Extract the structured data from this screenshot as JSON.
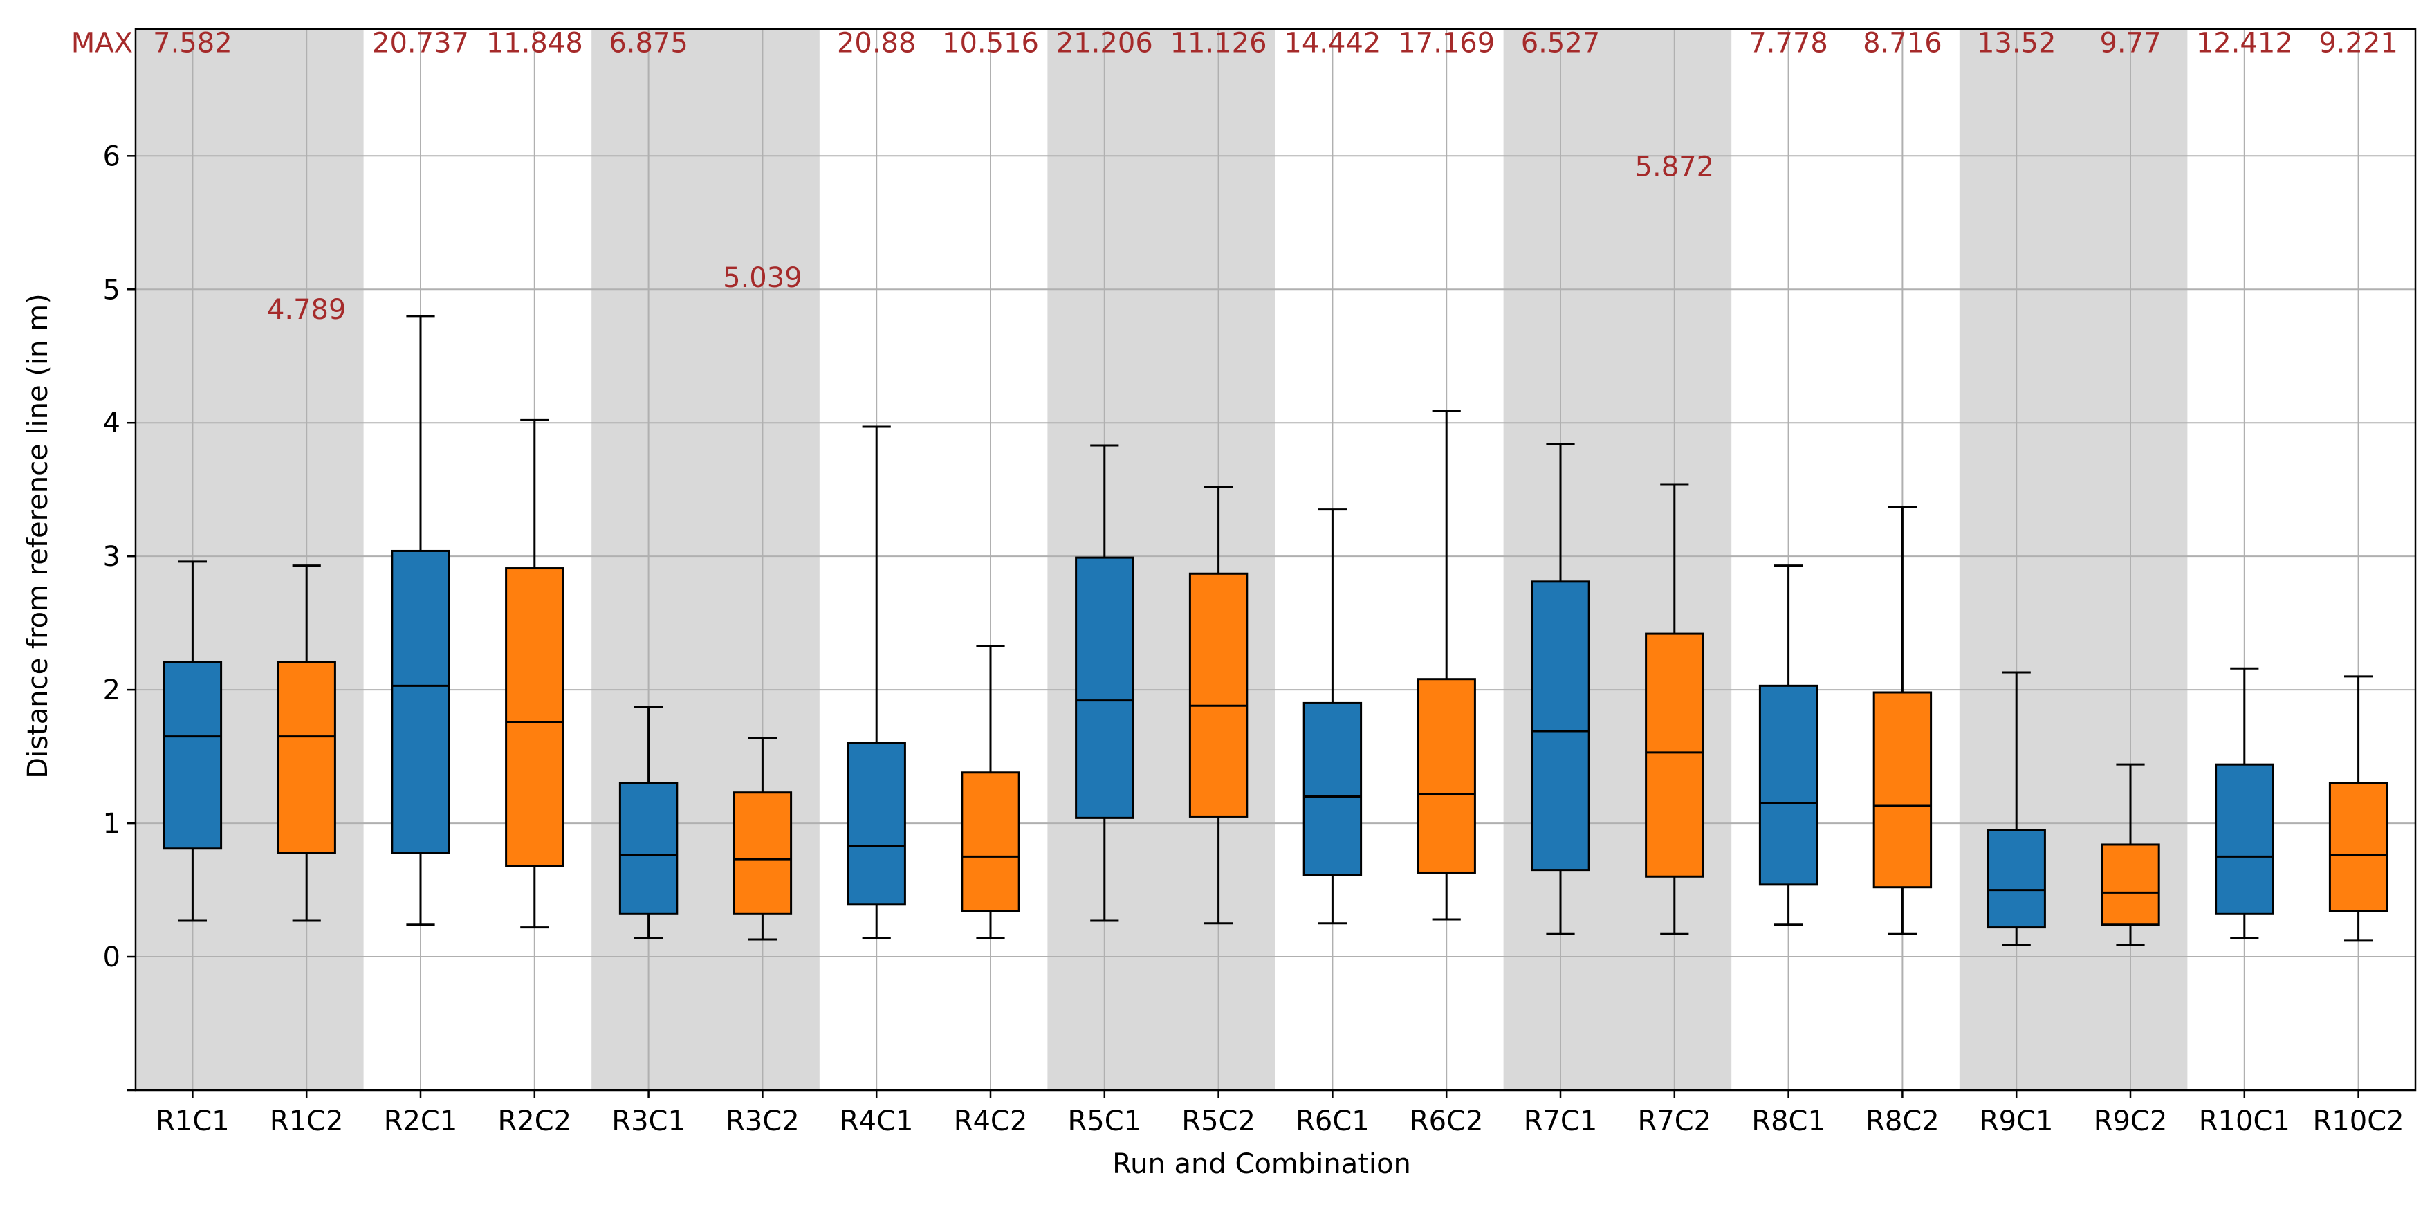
{
  "chart_data": {
    "type": "boxplot",
    "title": "",
    "xlabel": "Run and Combination",
    "ylabel": "Distance from reference line (in m)",
    "ylim": [
      -1.0,
      6.95
    ],
    "yticks": [
      0,
      1,
      2,
      3,
      4,
      5,
      6
    ],
    "grid": true,
    "max_prefix": "MAX",
    "colors": {
      "C1": "#1f77b4",
      "C2": "#ff7f0e",
      "shade": "#d9d9d9",
      "grid": "#b0b0b0",
      "annotation": "#a52a2a",
      "edge": "#000000"
    },
    "shaded_runs": [
      "R1",
      "R3",
      "R5",
      "R7",
      "R9"
    ],
    "categories": [
      "R1C1",
      "R1C2",
      "R2C1",
      "R2C2",
      "R3C1",
      "R3C2",
      "R4C1",
      "R4C2",
      "R5C1",
      "R5C2",
      "R6C1",
      "R6C2",
      "R7C1",
      "R7C2",
      "R8C1",
      "R8C2",
      "R9C1",
      "R9C2",
      "R10C1",
      "R10C2"
    ],
    "boxes": [
      {
        "label": "R1C1",
        "combo": "C1",
        "whislo": 0.27,
        "q1": 0.81,
        "med": 1.65,
        "q3": 2.21,
        "whishi": 2.96,
        "max": "7.582",
        "max_y": 6.85
      },
      {
        "label": "R1C2",
        "combo": "C2",
        "whislo": 0.27,
        "q1": 0.78,
        "med": 1.65,
        "q3": 2.21,
        "whishi": 2.93,
        "max": "4.789",
        "max_y": 4.85
      },
      {
        "label": "R2C1",
        "combo": "C1",
        "whislo": 0.24,
        "q1": 0.78,
        "med": 2.03,
        "q3": 3.04,
        "whishi": 4.8,
        "max": "20.737",
        "max_y": 6.85
      },
      {
        "label": "R2C2",
        "combo": "C2",
        "whislo": 0.22,
        "q1": 0.68,
        "med": 1.76,
        "q3": 2.91,
        "whishi": 4.02,
        "max": "11.848",
        "max_y": 6.85
      },
      {
        "label": "R3C1",
        "combo": "C1",
        "whislo": 0.14,
        "q1": 0.32,
        "med": 0.76,
        "q3": 1.3,
        "whishi": 1.87,
        "max": "6.875",
        "max_y": 6.85
      },
      {
        "label": "R3C2",
        "combo": "C2",
        "whislo": 0.13,
        "q1": 0.32,
        "med": 0.73,
        "q3": 1.23,
        "whishi": 1.64,
        "max": "5.039",
        "max_y": 5.09
      },
      {
        "label": "R4C1",
        "combo": "C1",
        "whislo": 0.14,
        "q1": 0.39,
        "med": 0.83,
        "q3": 1.6,
        "whishi": 3.97,
        "max": "20.88",
        "max_y": 6.85
      },
      {
        "label": "R4C2",
        "combo": "C2",
        "whislo": 0.14,
        "q1": 0.34,
        "med": 0.75,
        "q3": 1.38,
        "whishi": 2.33,
        "max": "10.516",
        "max_y": 6.85
      },
      {
        "label": "R5C1",
        "combo": "C1",
        "whislo": 0.27,
        "q1": 1.04,
        "med": 1.92,
        "q3": 2.99,
        "whishi": 3.83,
        "max": "21.206",
        "max_y": 6.85
      },
      {
        "label": "R5C2",
        "combo": "C2",
        "whislo": 0.25,
        "q1": 1.05,
        "med": 1.88,
        "q3": 2.87,
        "whishi": 3.52,
        "max": "11.126",
        "max_y": 6.85
      },
      {
        "label": "R6C1",
        "combo": "C1",
        "whislo": 0.25,
        "q1": 0.61,
        "med": 1.2,
        "q3": 1.9,
        "whishi": 3.35,
        "max": "14.442",
        "max_y": 6.85
      },
      {
        "label": "R6C2",
        "combo": "C2",
        "whislo": 0.28,
        "q1": 0.63,
        "med": 1.22,
        "q3": 2.08,
        "whishi": 4.09,
        "max": "17.169",
        "max_y": 6.85
      },
      {
        "label": "R7C1",
        "combo": "C1",
        "whislo": 0.17,
        "q1": 0.65,
        "med": 1.69,
        "q3": 2.81,
        "whishi": 3.84,
        "max": "6.527",
        "max_y": 6.85
      },
      {
        "label": "R7C2",
        "combo": "C2",
        "whislo": 0.17,
        "q1": 0.6,
        "med": 1.53,
        "q3": 2.42,
        "whishi": 3.54,
        "max": "5.872",
        "max_y": 5.92
      },
      {
        "label": "R8C1",
        "combo": "C1",
        "whislo": 0.24,
        "q1": 0.54,
        "med": 1.15,
        "q3": 2.03,
        "whishi": 2.93,
        "max": "7.778",
        "max_y": 6.85
      },
      {
        "label": "R8C2",
        "combo": "C2",
        "whislo": 0.17,
        "q1": 0.52,
        "med": 1.13,
        "q3": 1.98,
        "whishi": 3.37,
        "max": "8.716",
        "max_y": 6.85
      },
      {
        "label": "R9C1",
        "combo": "C1",
        "whislo": 0.09,
        "q1": 0.22,
        "med": 0.5,
        "q3": 0.95,
        "whishi": 2.13,
        "max": "13.52",
        "max_y": 6.85
      },
      {
        "label": "R9C2",
        "combo": "C2",
        "whislo": 0.09,
        "q1": 0.24,
        "med": 0.48,
        "q3": 0.84,
        "whishi": 1.44,
        "max": "9.77",
        "max_y": 6.85
      },
      {
        "label": "R10C1",
        "combo": "C1",
        "whislo": 0.14,
        "q1": 0.32,
        "med": 0.75,
        "q3": 1.44,
        "whishi": 2.16,
        "max": "12.412",
        "max_y": 6.85
      },
      {
        "label": "R10C2",
        "combo": "C2",
        "whislo": 0.12,
        "q1": 0.34,
        "med": 0.76,
        "q3": 1.3,
        "whishi": 2.1,
        "max": "9.221",
        "max_y": 6.85
      }
    ]
  }
}
